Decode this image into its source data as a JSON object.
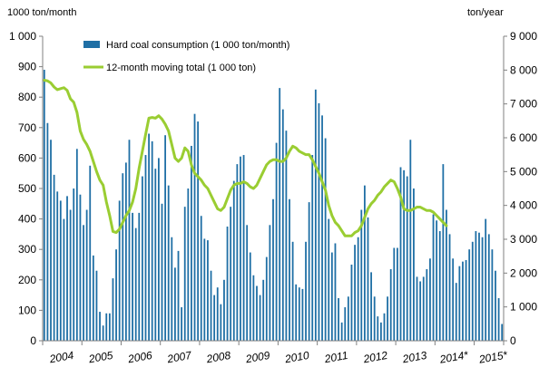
{
  "chart_data": {
    "type": "bar",
    "left_unit": "1000 ton/month",
    "right_unit": "ton/year",
    "y_left_range": [
      0,
      1000
    ],
    "y_right_range": [
      0,
      9000
    ],
    "y_left_ticks": [
      "0",
      "100",
      "200",
      "300",
      "400",
      "500",
      "600",
      "700",
      "800",
      "900",
      "1 000"
    ],
    "y_right_ticks": [
      "0",
      "1 000",
      "2 000",
      "3 000",
      "4 000",
      "5 000",
      "6 000",
      "7 000",
      "8 000",
      "9 000"
    ],
    "x_labels": [
      "2004",
      "2005",
      "2006",
      "2007",
      "2008",
      "2009",
      "2010",
      "2011",
      "2012",
      "2013",
      "2014*",
      "2015*"
    ],
    "grid": false,
    "legend_position": "top-left",
    "colors": {
      "bar": "#1f6fa5",
      "line": "#9acd32"
    },
    "series": [
      {
        "name": "Hard coal consumption (1 000 ton/month)",
        "axis": "left",
        "values": [
          890,
          715,
          660,
          545,
          490,
          460,
          400,
          475,
          430,
          500,
          630,
          480,
          380,
          430,
          575,
          280,
          230,
          95,
          50,
          90,
          90,
          205,
          300,
          460,
          550,
          585,
          660,
          420,
          370,
          420,
          540,
          610,
          680,
          655,
          565,
          600,
          450,
          675,
          510,
          340,
          240,
          295,
          110,
          440,
          500,
          640,
          745,
          720,
          410,
          335,
          330,
          230,
          150,
          175,
          120,
          200,
          375,
          440,
          525,
          580,
          605,
          610,
          380,
          290,
          215,
          180,
          150,
          200,
          275,
          380,
          465,
          650,
          830,
          760,
          690,
          465,
          325,
          185,
          175,
          170,
          325,
          455,
          610,
          825,
          780,
          740,
          665,
          400,
          290,
          320,
          140,
          60,
          110,
          145,
          250,
          315,
          340,
          430,
          510,
          405,
          225,
          145,
          80,
          60,
          90,
          145,
          235,
          305,
          305,
          570,
          560,
          540,
          660,
          500,
          210,
          195,
          210,
          235,
          270,
          415,
          395,
          360,
          580,
          430,
          350,
          270,
          190,
          245,
          260,
          265,
          300,
          325,
          360,
          355,
          340,
          400,
          350,
          300,
          230,
          140,
          55
        ]
      },
      {
        "name": "12-month moving total (1 000 ton)",
        "axis": "right",
        "type": "line",
        "values": [
          7700,
          7680,
          7620,
          7500,
          7420,
          7450,
          7480,
          7400,
          7150,
          7050,
          6750,
          6200,
          5950,
          5800,
          5600,
          5300,
          5000,
          4750,
          4600,
          4100,
          3700,
          3230,
          3200,
          3300,
          3500,
          3700,
          3850,
          4100,
          4500,
          5100,
          5600,
          6100,
          6580,
          6600,
          6580,
          6650,
          6550,
          6400,
          6200,
          5800,
          5400,
          5300,
          5400,
          5700,
          5600,
          5200,
          4950,
          4850,
          4750,
          4600,
          4500,
          4300,
          4100,
          3900,
          3850,
          3950,
          4200,
          4450,
          4600,
          4650,
          4650,
          4700,
          4650,
          4550,
          4500,
          4600,
          4800,
          5000,
          5200,
          5300,
          5350,
          5350,
          5300,
          5300,
          5400,
          5600,
          5750,
          5700,
          5600,
          5550,
          5500,
          5500,
          5350,
          5150,
          4950,
          4700,
          4450,
          4000,
          3700,
          3500,
          3400,
          3250,
          3100,
          3100,
          3100,
          3200,
          3250,
          3400,
          3650,
          3900,
          4050,
          4150,
          4300,
          4400,
          4550,
          4650,
          4750,
          4700,
          4500,
          4250,
          3900,
          3850,
          3850,
          3900,
          3950,
          3950,
          3900,
          3850,
          3850,
          3800,
          3700,
          3600,
          3500,
          3400
        ]
      }
    ]
  }
}
